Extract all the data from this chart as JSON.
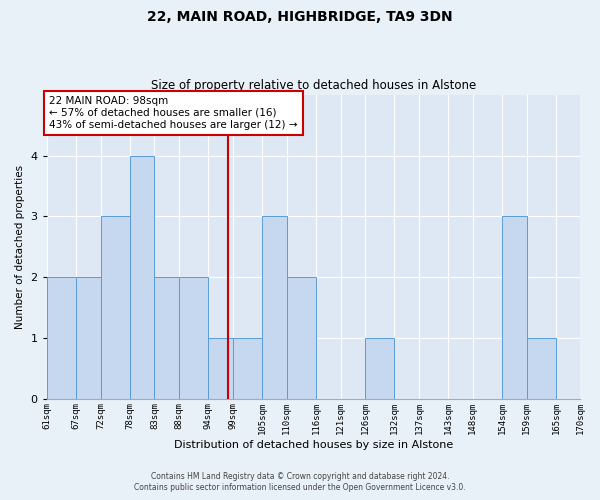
{
  "title1": "22, MAIN ROAD, HIGHBRIDGE, TA9 3DN",
  "title2": "Size of property relative to detached houses in Alstone",
  "xlabel": "Distribution of detached houses by size in Alstone",
  "ylabel": "Number of detached properties",
  "annotation_title": "22 MAIN ROAD: 98sqm",
  "annotation_line1": "← 57% of detached houses are smaller (16)",
  "annotation_line2": "43% of semi-detached houses are larger (12) →",
  "footer1": "Contains HM Land Registry data © Crown copyright and database right 2024.",
  "footer2": "Contains public sector information licensed under the Open Government Licence v3.0.",
  "bin_labels": [
    "61sqm",
    "67sqm",
    "72sqm",
    "78sqm",
    "83sqm",
    "88sqm",
    "94sqm",
    "99sqm",
    "105sqm",
    "110sqm",
    "116sqm",
    "121sqm",
    "126sqm",
    "132sqm",
    "137sqm",
    "143sqm",
    "148sqm",
    "154sqm",
    "159sqm",
    "165sqm",
    "170sqm"
  ],
  "bin_edges": [
    61,
    67,
    72,
    78,
    83,
    88,
    94,
    99,
    105,
    110,
    116,
    121,
    126,
    132,
    137,
    143,
    148,
    154,
    159,
    165,
    170
  ],
  "bar_heights": [
    2,
    2,
    3,
    4,
    2,
    2,
    1,
    1,
    3,
    2,
    0,
    0,
    1,
    0,
    0,
    0,
    0,
    3,
    1,
    0
  ],
  "bar_color": "#c5d8f0",
  "bar_edge_color": "#5b9bd5",
  "reference_line_x": 98,
  "reference_line_color": "#cc0000",
  "ylim": [
    0,
    5
  ],
  "yticks": [
    0,
    1,
    2,
    3,
    4,
    5
  ],
  "annotation_box_color": "#ffffff",
  "annotation_box_edge_color": "#cc0000",
  "background_color": "#e8f0f8",
  "plot_bg_color": "#dde8f4"
}
